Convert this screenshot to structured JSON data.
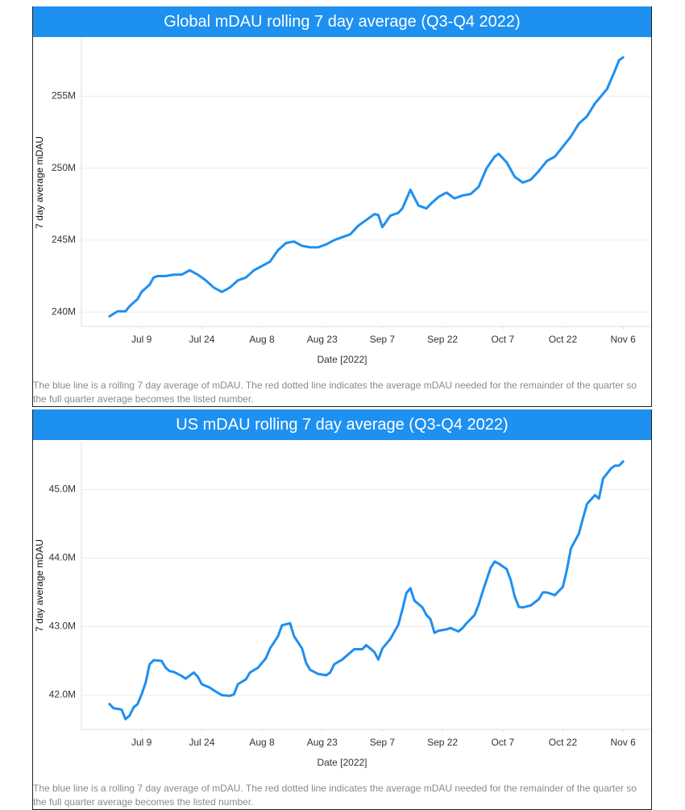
{
  "chart_data": [
    {
      "type": "line",
      "title": "Global mDAU rolling 7 day average (Q3-Q4 2022)",
      "x_label": "Date [2022]",
      "y_label": "7 day average mDAU",
      "caption": "The blue line is a rolling 7 day average of mDAU. The red dotted line indicates the average mDAU needed for the remainder of the quarter so the full quarter average becomes the listed number.",
      "color": "#1e8ff0",
      "grid": true,
      "xlim": [
        "2022-06-24",
        "2022-11-13"
      ],
      "xticks": [
        {
          "value": "2022-07-09",
          "label": "Jul 9"
        },
        {
          "value": "2022-07-24",
          "label": "Jul 24"
        },
        {
          "value": "2022-08-08",
          "label": "Aug 8"
        },
        {
          "value": "2022-08-23",
          "label": "Aug 23"
        },
        {
          "value": "2022-09-07",
          "label": "Sep 7"
        },
        {
          "value": "2022-09-22",
          "label": "Sep 22"
        },
        {
          "value": "2022-10-07",
          "label": "Oct 7"
        },
        {
          "value": "2022-10-22",
          "label": "Oct 22"
        },
        {
          "value": "2022-11-06",
          "label": "Nov 6"
        }
      ],
      "ylim": [
        239,
        259
      ],
      "yticks": [
        {
          "value": 240,
          "label": "240M"
        },
        {
          "value": 245,
          "label": "245M"
        },
        {
          "value": 250,
          "label": "250M"
        },
        {
          "value": 255,
          "label": "255M"
        }
      ],
      "x": [
        "2022-07-01",
        "2022-07-03",
        "2022-07-05",
        "2022-07-06",
        "2022-07-08",
        "2022-07-09",
        "2022-07-11",
        "2022-07-12",
        "2022-07-13",
        "2022-07-15",
        "2022-07-17",
        "2022-07-19",
        "2022-07-21",
        "2022-07-23",
        "2022-07-25",
        "2022-07-27",
        "2022-07-29",
        "2022-07-31",
        "2022-08-02",
        "2022-08-04",
        "2022-08-06",
        "2022-08-08",
        "2022-08-10",
        "2022-08-12",
        "2022-08-14",
        "2022-08-16",
        "2022-08-18",
        "2022-08-20",
        "2022-08-22",
        "2022-08-24",
        "2022-08-26",
        "2022-08-28",
        "2022-08-30",
        "2022-09-01",
        "2022-09-03",
        "2022-09-05",
        "2022-09-06",
        "2022-09-07",
        "2022-09-09",
        "2022-09-11",
        "2022-09-12",
        "2022-09-14",
        "2022-09-16",
        "2022-09-18",
        "2022-09-19",
        "2022-09-21",
        "2022-09-23",
        "2022-09-25",
        "2022-09-27",
        "2022-09-29",
        "2022-10-01",
        "2022-10-03",
        "2022-10-05",
        "2022-10-06",
        "2022-10-08",
        "2022-10-10",
        "2022-10-12",
        "2022-10-14",
        "2022-10-16",
        "2022-10-18",
        "2022-10-20",
        "2022-10-22",
        "2022-10-24",
        "2022-10-26",
        "2022-10-28",
        "2022-10-30",
        "2022-11-02",
        "2022-11-04",
        "2022-11-05",
        "2022-11-06"
      ],
      "values": [
        239.7,
        240.05,
        240.05,
        240.4,
        240.9,
        241.4,
        241.9,
        242.4,
        242.5,
        242.5,
        242.6,
        242.6,
        242.9,
        242.6,
        242.2,
        241.7,
        241.4,
        241.7,
        242.2,
        242.4,
        242.9,
        243.2,
        243.5,
        244.3,
        244.8,
        244.9,
        244.6,
        244.5,
        244.5,
        244.7,
        245.0,
        245.2,
        245.4,
        246.0,
        246.4,
        246.8,
        246.75,
        245.9,
        246.7,
        246.9,
        247.2,
        248.5,
        247.4,
        247.2,
        247.5,
        248.0,
        248.3,
        247.9,
        248.1,
        248.2,
        248.7,
        250.0,
        250.8,
        251.0,
        250.4,
        249.4,
        249.0,
        249.2,
        249.8,
        250.5,
        250.8,
        251.5,
        252.2,
        253.1,
        253.6,
        254.5,
        255.5,
        256.8,
        257.5,
        257.7
      ]
    },
    {
      "type": "line",
      "title": "US mDAU rolling 7 day average (Q3-Q4 2022)",
      "x_label": "Date [2022]",
      "y_label": "7 day average mDAU",
      "caption": "The blue line is a rolling 7 day average of mDAU. The red dotted line indicates the average mDAU needed for the remainder of the quarter so the full quarter average becomes the listed number.",
      "color": "#1e8ff0",
      "grid": true,
      "xlim": [
        "2022-06-24",
        "2022-11-13"
      ],
      "xticks": [
        {
          "value": "2022-07-09",
          "label": "Jul 9"
        },
        {
          "value": "2022-07-24",
          "label": "Jul 24"
        },
        {
          "value": "2022-08-08",
          "label": "Aug 8"
        },
        {
          "value": "2022-08-23",
          "label": "Aug 23"
        },
        {
          "value": "2022-09-07",
          "label": "Sep 7"
        },
        {
          "value": "2022-09-22",
          "label": "Sep 22"
        },
        {
          "value": "2022-10-07",
          "label": "Oct 7"
        },
        {
          "value": "2022-10-22",
          "label": "Oct 22"
        },
        {
          "value": "2022-11-06",
          "label": "Nov 6"
        }
      ],
      "ylim": [
        41.5,
        45.7
      ],
      "yticks": [
        {
          "value": 42,
          "label": "42.0M"
        },
        {
          "value": 43,
          "label": "43.0M"
        },
        {
          "value": 44,
          "label": "44.0M"
        },
        {
          "value": 45,
          "label": "45.0M"
        }
      ],
      "x": [
        "2022-07-01",
        "2022-07-02",
        "2022-07-04",
        "2022-07-05",
        "2022-07-06",
        "2022-07-07",
        "2022-07-08",
        "2022-07-09",
        "2022-07-10",
        "2022-07-11",
        "2022-07-12",
        "2022-07-14",
        "2022-07-15",
        "2022-07-16",
        "2022-07-17",
        "2022-07-19",
        "2022-07-20",
        "2022-07-22",
        "2022-07-23",
        "2022-07-24",
        "2022-07-26",
        "2022-07-27",
        "2022-07-29",
        "2022-07-31",
        "2022-08-01",
        "2022-08-02",
        "2022-08-04",
        "2022-08-05",
        "2022-08-07",
        "2022-08-09",
        "2022-08-10",
        "2022-08-12",
        "2022-08-13",
        "2022-08-15",
        "2022-08-16",
        "2022-08-18",
        "2022-08-19",
        "2022-08-20",
        "2022-08-22",
        "2022-08-24",
        "2022-08-25",
        "2022-08-26",
        "2022-08-28",
        "2022-08-30",
        "2022-08-31",
        "2022-09-02",
        "2022-09-03",
        "2022-09-05",
        "2022-09-06",
        "2022-09-07",
        "2022-09-09",
        "2022-09-11",
        "2022-09-12",
        "2022-09-13",
        "2022-09-14",
        "2022-09-15",
        "2022-09-17",
        "2022-09-18",
        "2022-09-19",
        "2022-09-20",
        "2022-09-21",
        "2022-09-23",
        "2022-09-24",
        "2022-09-26",
        "2022-09-27",
        "2022-09-28",
        "2022-09-30",
        "2022-10-01",
        "2022-10-02",
        "2022-10-04",
        "2022-10-05",
        "2022-10-06",
        "2022-10-08",
        "2022-10-09",
        "2022-10-10",
        "2022-10-11",
        "2022-10-12",
        "2022-10-14",
        "2022-10-16",
        "2022-10-17",
        "2022-10-18",
        "2022-10-20",
        "2022-10-22",
        "2022-10-23",
        "2022-10-24",
        "2022-10-26",
        "2022-10-27",
        "2022-10-28",
        "2022-10-30",
        "2022-10-31",
        "2022-11-01",
        "2022-11-03",
        "2022-11-04",
        "2022-11-05",
        "2022-11-06"
      ],
      "values": [
        41.87,
        41.81,
        41.79,
        41.65,
        41.7,
        41.82,
        41.87,
        42.01,
        42.18,
        42.45,
        42.51,
        42.5,
        42.4,
        42.35,
        42.34,
        42.28,
        42.24,
        42.33,
        42.27,
        42.16,
        42.11,
        42.07,
        42.0,
        41.99,
        42.01,
        42.16,
        42.23,
        42.33,
        42.4,
        42.54,
        42.68,
        42.86,
        43.02,
        43.05,
        42.86,
        42.68,
        42.47,
        42.37,
        42.31,
        42.29,
        42.33,
        42.45,
        42.52,
        42.62,
        42.67,
        42.67,
        42.73,
        42.63,
        42.52,
        42.68,
        42.82,
        43.03,
        43.25,
        43.49,
        43.56,
        43.38,
        43.28,
        43.17,
        43.11,
        42.91,
        42.94,
        42.96,
        42.98,
        42.93,
        42.98,
        43.05,
        43.17,
        43.32,
        43.51,
        43.86,
        43.95,
        43.92,
        43.84,
        43.68,
        43.44,
        43.29,
        43.28,
        43.31,
        43.4,
        43.5,
        43.5,
        43.46,
        43.58,
        43.83,
        44.14,
        44.36,
        44.58,
        44.79,
        44.92,
        44.87,
        45.16,
        45.31,
        45.35,
        45.35,
        45.41
      ]
    }
  ]
}
